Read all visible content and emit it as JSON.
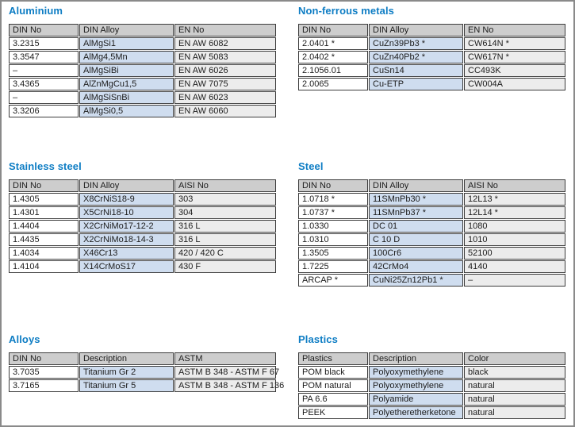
{
  "colors": {
    "title": "#0e7dc4",
    "header_bg": "#cdcdcd",
    "col1_bg": "#ffffff",
    "col2_bg": "#cfddef",
    "col3_bg": "#ececec",
    "cell_border": "#3d3d3d",
    "page_border": "#8a8a8a"
  },
  "sections": [
    {
      "title": "Aluminium",
      "columns": [
        "DIN No",
        "DIN Alloy",
        "EN No"
      ],
      "rows": [
        [
          "3.2315",
          "AlMgSi1",
          "EN AW 6082"
        ],
        [
          "3.3547",
          "AlMg4,5Mn",
          "EN AW 5083"
        ],
        [
          "–",
          "AlMgSiBi",
          "EN AW 6026"
        ],
        [
          "3.4365",
          "AlZnMgCu1,5",
          "EN AW 7075"
        ],
        [
          "–",
          "AlMgSiSnBi",
          "EN AW 6023"
        ],
        [
          "3.3206",
          "AlMgSi0,5",
          "EN AW 6060"
        ]
      ]
    },
    {
      "title": "Non-ferrous metals",
      "columns": [
        "DIN No",
        "DIN Alloy",
        "EN No"
      ],
      "rows": [
        [
          "2.0401 *",
          "CuZn39Pb3 *",
          "CW614N *"
        ],
        [
          "2.0402 *",
          "CuZn40Pb2 *",
          "CW617N *"
        ],
        [
          "2.1056.01",
          "CuSn14",
          "CC493K"
        ],
        [
          "2.0065",
          "Cu-ETP",
          "CW004A"
        ]
      ]
    },
    {
      "title": "Stainless steel",
      "columns": [
        "DIN No",
        "DIN Alloy",
        "AISI No"
      ],
      "rows": [
        [
          "1.4305",
          "X8CrNiS18-9",
          "303"
        ],
        [
          "1.4301",
          "X5CrNi18-10",
          "304"
        ],
        [
          "1.4404",
          "X2CrNiMo17-12-2",
          "316 L"
        ],
        [
          "1.4435",
          "X2CrNiMo18-14-3",
          "316 L"
        ],
        [
          "1.4034",
          "X46Cr13",
          "420 / 420 C"
        ],
        [
          "1.4104",
          "X14CrMoS17",
          "430 F"
        ]
      ]
    },
    {
      "title": "Steel",
      "columns": [
        "DIN No",
        "DIN Alloy",
        "AISI No"
      ],
      "rows": [
        [
          "1.0718 *",
          "11SMnPb30 *",
          "12L13 *"
        ],
        [
          "1.0737 *",
          "11SMnPb37 *",
          "12L14 *"
        ],
        [
          "1.0330",
          "DC 01",
          "1080"
        ],
        [
          "1.0310",
          "C 10 D",
          "1010"
        ],
        [
          "1.3505",
          "100Cr6",
          "52100"
        ],
        [
          "1.7225",
          "42CrMo4",
          "4140"
        ],
        [
          "ARCAP *",
          "CuNi25Zn12Pb1 *",
          "–"
        ]
      ]
    },
    {
      "title": "Alloys",
      "columns": [
        "DIN No",
        "Description",
        "ASTM"
      ],
      "rows": [
        [
          "3.7035",
          "Titanium Gr 2",
          "ASTM B 348 - ASTM F 67"
        ],
        [
          "3.7165",
          "Titanium Gr 5",
          "ASTM B 348 - ASTM F 136"
        ]
      ]
    },
    {
      "title": "Plastics",
      "columns": [
        "Plastics",
        "Description",
        "Color"
      ],
      "rows": [
        [
          "POM black",
          "Polyoxymethylene",
          "black"
        ],
        [
          "POM natural",
          "Polyoxymethylene",
          "natural"
        ],
        [
          "PA 6.6",
          "Polyamide",
          "natural"
        ],
        [
          "PEEK",
          "Polyetheretherketone",
          "natural"
        ]
      ]
    }
  ]
}
